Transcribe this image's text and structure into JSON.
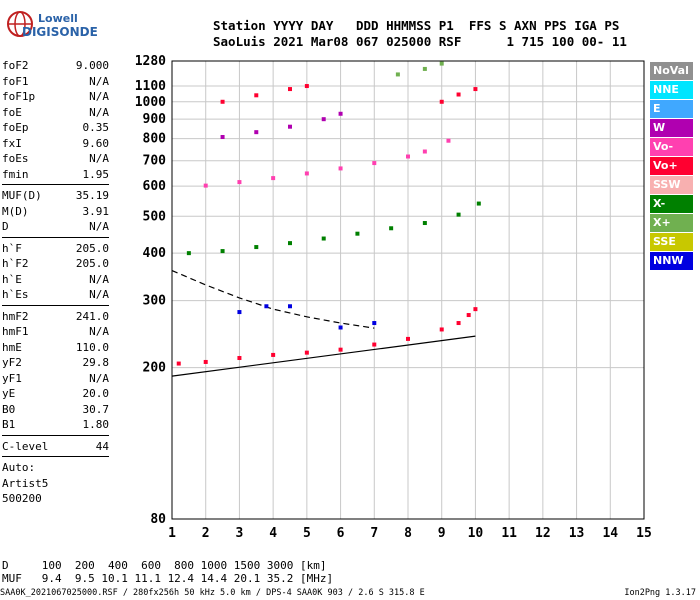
{
  "logo": {
    "line1": "Lowell",
    "line2": "DIGISONDE"
  },
  "header": {
    "line1": "Station YYYY DAY   DDD HHMMSS P1  FFS S AXN PPS IGA PS",
    "line2": "SaoLuis 2021 Mar08 067 025000 RSF      1 715 100 00- 11"
  },
  "params": {
    "group1": [
      {
        "label": "foF2",
        "value": "9.000"
      },
      {
        "label": "foF1",
        "value": "N/A"
      },
      {
        "label": "foF1p",
        "value": "N/A"
      },
      {
        "label": "foE",
        "value": "N/A"
      },
      {
        "label": "foEp",
        "value": "0.35"
      },
      {
        "label": "fxI",
        "value": "9.60"
      },
      {
        "label": "foEs",
        "value": "N/A"
      },
      {
        "label": "fmin",
        "value": "1.95"
      }
    ],
    "group2": [
      {
        "label": "MUF(D)",
        "value": "35.19"
      },
      {
        "label": "M(D)",
        "value": "3.91"
      },
      {
        "label": "D",
        "value": "N/A"
      }
    ],
    "group3": [
      {
        "label": "h`F",
        "value": "205.0"
      },
      {
        "label": "h`F2",
        "value": "205.0"
      },
      {
        "label": "h`E",
        "value": "N/A"
      },
      {
        "label": "h`Es",
        "value": "N/A"
      }
    ],
    "group4": [
      {
        "label": "hmF2",
        "value": "241.0"
      },
      {
        "label": "hmF1",
        "value": "N/A"
      },
      {
        "label": "hmE",
        "value": "110.0"
      },
      {
        "label": "yF2",
        "value": "29.8"
      },
      {
        "label": "yF1",
        "value": "N/A"
      },
      {
        "label": "yE",
        "value": "20.0"
      },
      {
        "label": "B0",
        "value": "30.7"
      },
      {
        "label": "B1",
        "value": "1.80"
      }
    ],
    "group5": [
      {
        "label": "C-level",
        "value": "44"
      }
    ],
    "group6": [
      "Auto:",
      "Artist5",
      "500200"
    ]
  },
  "legend": [
    {
      "label": "NoVal",
      "bg": "#909090",
      "fg": "#ffffff"
    },
    {
      "label": "NNE",
      "bg": "#00e5ff",
      "fg": "#ffffff"
    },
    {
      "label": "E",
      "bg": "#40a8ff",
      "fg": "#ffffff"
    },
    {
      "label": "W",
      "bg": "#b000b0",
      "fg": "#ffffff"
    },
    {
      "label": "Vo-",
      "bg": "#ff40b0",
      "fg": "#ffffff"
    },
    {
      "label": "Vo+",
      "bg": "#ff0030",
      "fg": "#ffffff"
    },
    {
      "label": "SSW",
      "bg": "#f8b0b0",
      "fg": "#ffffff"
    },
    {
      "label": "X-",
      "bg": "#008000",
      "fg": "#ffffff"
    },
    {
      "label": "X+",
      "bg": "#70b050",
      "fg": "#ffffff"
    },
    {
      "label": "SSE",
      "bg": "#c8c800",
      "fg": "#ffffff"
    },
    {
      "label": "NNW",
      "bg": "#0000e0",
      "fg": "#ffffff"
    }
  ],
  "footer": {
    "line1": "D     100  200  400  600  800 1000 1500 3000 [km]",
    "line2": "MUF   9.4  9.5 10.1 11.1 12.4 14.4 20.1 35.2 [MHz]",
    "line3_left": "SAA0K_2021067025000.RSF / 280fx256h 50 kHz 5.0 km / DPS-4 SAA0K 903 / 2.6 S 315.8 E",
    "line3_right": "Ion2Png 1.3.17"
  },
  "chart_data": {
    "type": "scatter",
    "title": "",
    "xlabel": "",
    "ylabel": "",
    "xlim": [
      1,
      15
    ],
    "ylim": [
      80,
      1280
    ],
    "y_scale": "log",
    "x_ticks": [
      1,
      2,
      3,
      4,
      5,
      6,
      7,
      8,
      9,
      10,
      11,
      12,
      13,
      14,
      15
    ],
    "y_ticks": [
      80,
      200,
      300,
      400,
      500,
      600,
      700,
      800,
      900,
      1000,
      1100,
      1280
    ],
    "grid": true,
    "series": [
      {
        "color": "#ff0030",
        "points": [
          [
            1.2,
            205
          ],
          [
            2.0,
            207
          ],
          [
            3.0,
            212
          ],
          [
            4.0,
            216
          ],
          [
            5.0,
            219
          ],
          [
            6.0,
            223
          ],
          [
            7.0,
            230
          ],
          [
            8.0,
            238
          ],
          [
            9.0,
            252
          ],
          [
            9.5,
            262
          ],
          [
            9.8,
            275
          ],
          [
            10.0,
            285
          ]
        ]
      },
      {
        "color": "#008000",
        "points": [
          [
            1.5,
            400
          ],
          [
            2.5,
            405
          ],
          [
            3.5,
            415
          ],
          [
            4.5,
            425
          ],
          [
            5.5,
            437
          ],
          [
            6.5,
            450
          ],
          [
            7.5,
            465
          ],
          [
            8.5,
            480
          ],
          [
            9.5,
            505
          ],
          [
            10.1,
            540
          ]
        ]
      },
      {
        "color": "#ff40b0",
        "points": [
          [
            2.0,
            602
          ],
          [
            3.0,
            615
          ],
          [
            4.0,
            630
          ],
          [
            5.0,
            648
          ],
          [
            6.0,
            668
          ],
          [
            7.0,
            690
          ],
          [
            8.0,
            718
          ],
          [
            8.5,
            740
          ],
          [
            9.2,
            790
          ]
        ]
      },
      {
        "color": "#b000b0",
        "points": [
          [
            2.5,
            808
          ],
          [
            3.5,
            832
          ],
          [
            4.5,
            860
          ],
          [
            5.5,
            900
          ],
          [
            6.0,
            930
          ]
        ]
      },
      {
        "color": "#ff0030",
        "points": [
          [
            2.5,
            1000
          ],
          [
            3.5,
            1040
          ],
          [
            4.5,
            1080
          ],
          [
            5.0,
            1100
          ]
        ]
      },
      {
        "color": "#70b050",
        "points": [
          [
            7.7,
            1180
          ],
          [
            8.5,
            1220
          ],
          [
            9.0,
            1260
          ]
        ]
      },
      {
        "color": "#ff0030",
        "points": [
          [
            9.0,
            1000
          ],
          [
            9.5,
            1045
          ],
          [
            10.0,
            1080
          ]
        ]
      },
      {
        "color": "#0000e0",
        "points": [
          [
            3.0,
            280
          ],
          [
            3.8,
            290
          ],
          [
            4.5,
            290
          ],
          [
            6.0,
            255
          ],
          [
            7.0,
            262
          ]
        ]
      }
    ],
    "lines": [
      {
        "style": "solid",
        "points": [
          [
            1,
            190
          ],
          [
            10,
            242
          ]
        ]
      },
      {
        "style": "dashed",
        "points": [
          [
            1,
            360
          ],
          [
            2,
            330
          ],
          [
            3,
            305
          ],
          [
            4,
            285
          ],
          [
            5,
            272
          ],
          [
            6,
            262
          ],
          [
            7,
            254
          ]
        ]
      }
    ]
  }
}
